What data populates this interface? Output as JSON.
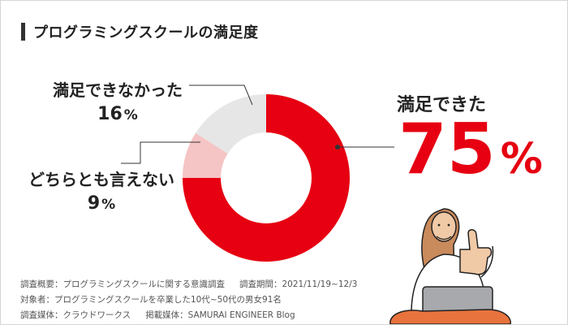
{
  "title": "プログラミングスクールの満足度",
  "chart_data": {
    "type": "pie",
    "categories": [
      "満足できた",
      "どちらとも言えない",
      "満足できなかった"
    ],
    "values": [
      75,
      9,
      16
    ],
    "unit": "%",
    "colors": [
      "#e60012",
      "#f5c4c4",
      "#e6e6e6"
    ]
  },
  "labels": {
    "satisfied": {
      "text": "満足できた",
      "value": "75",
      "unit": "%"
    },
    "neutral": {
      "text": "どちらとも言えない",
      "value": "9",
      "unit": "%"
    },
    "dissatisfied": {
      "text": "満足できなかった",
      "value": "16",
      "unit": "%"
    }
  },
  "notes": {
    "line1_a": "調査概要：プログラミングスクールに関する意識調査",
    "line1_b": "調査期間：2021/11/19~12/3",
    "line2": "対象者：プログラミングスクールを卒業した10代~50代の男女91名",
    "line3_a": "調査媒体：クラウドワークス",
    "line3_b": "掲載媒体：SAMURAI ENGINEER Blog"
  }
}
